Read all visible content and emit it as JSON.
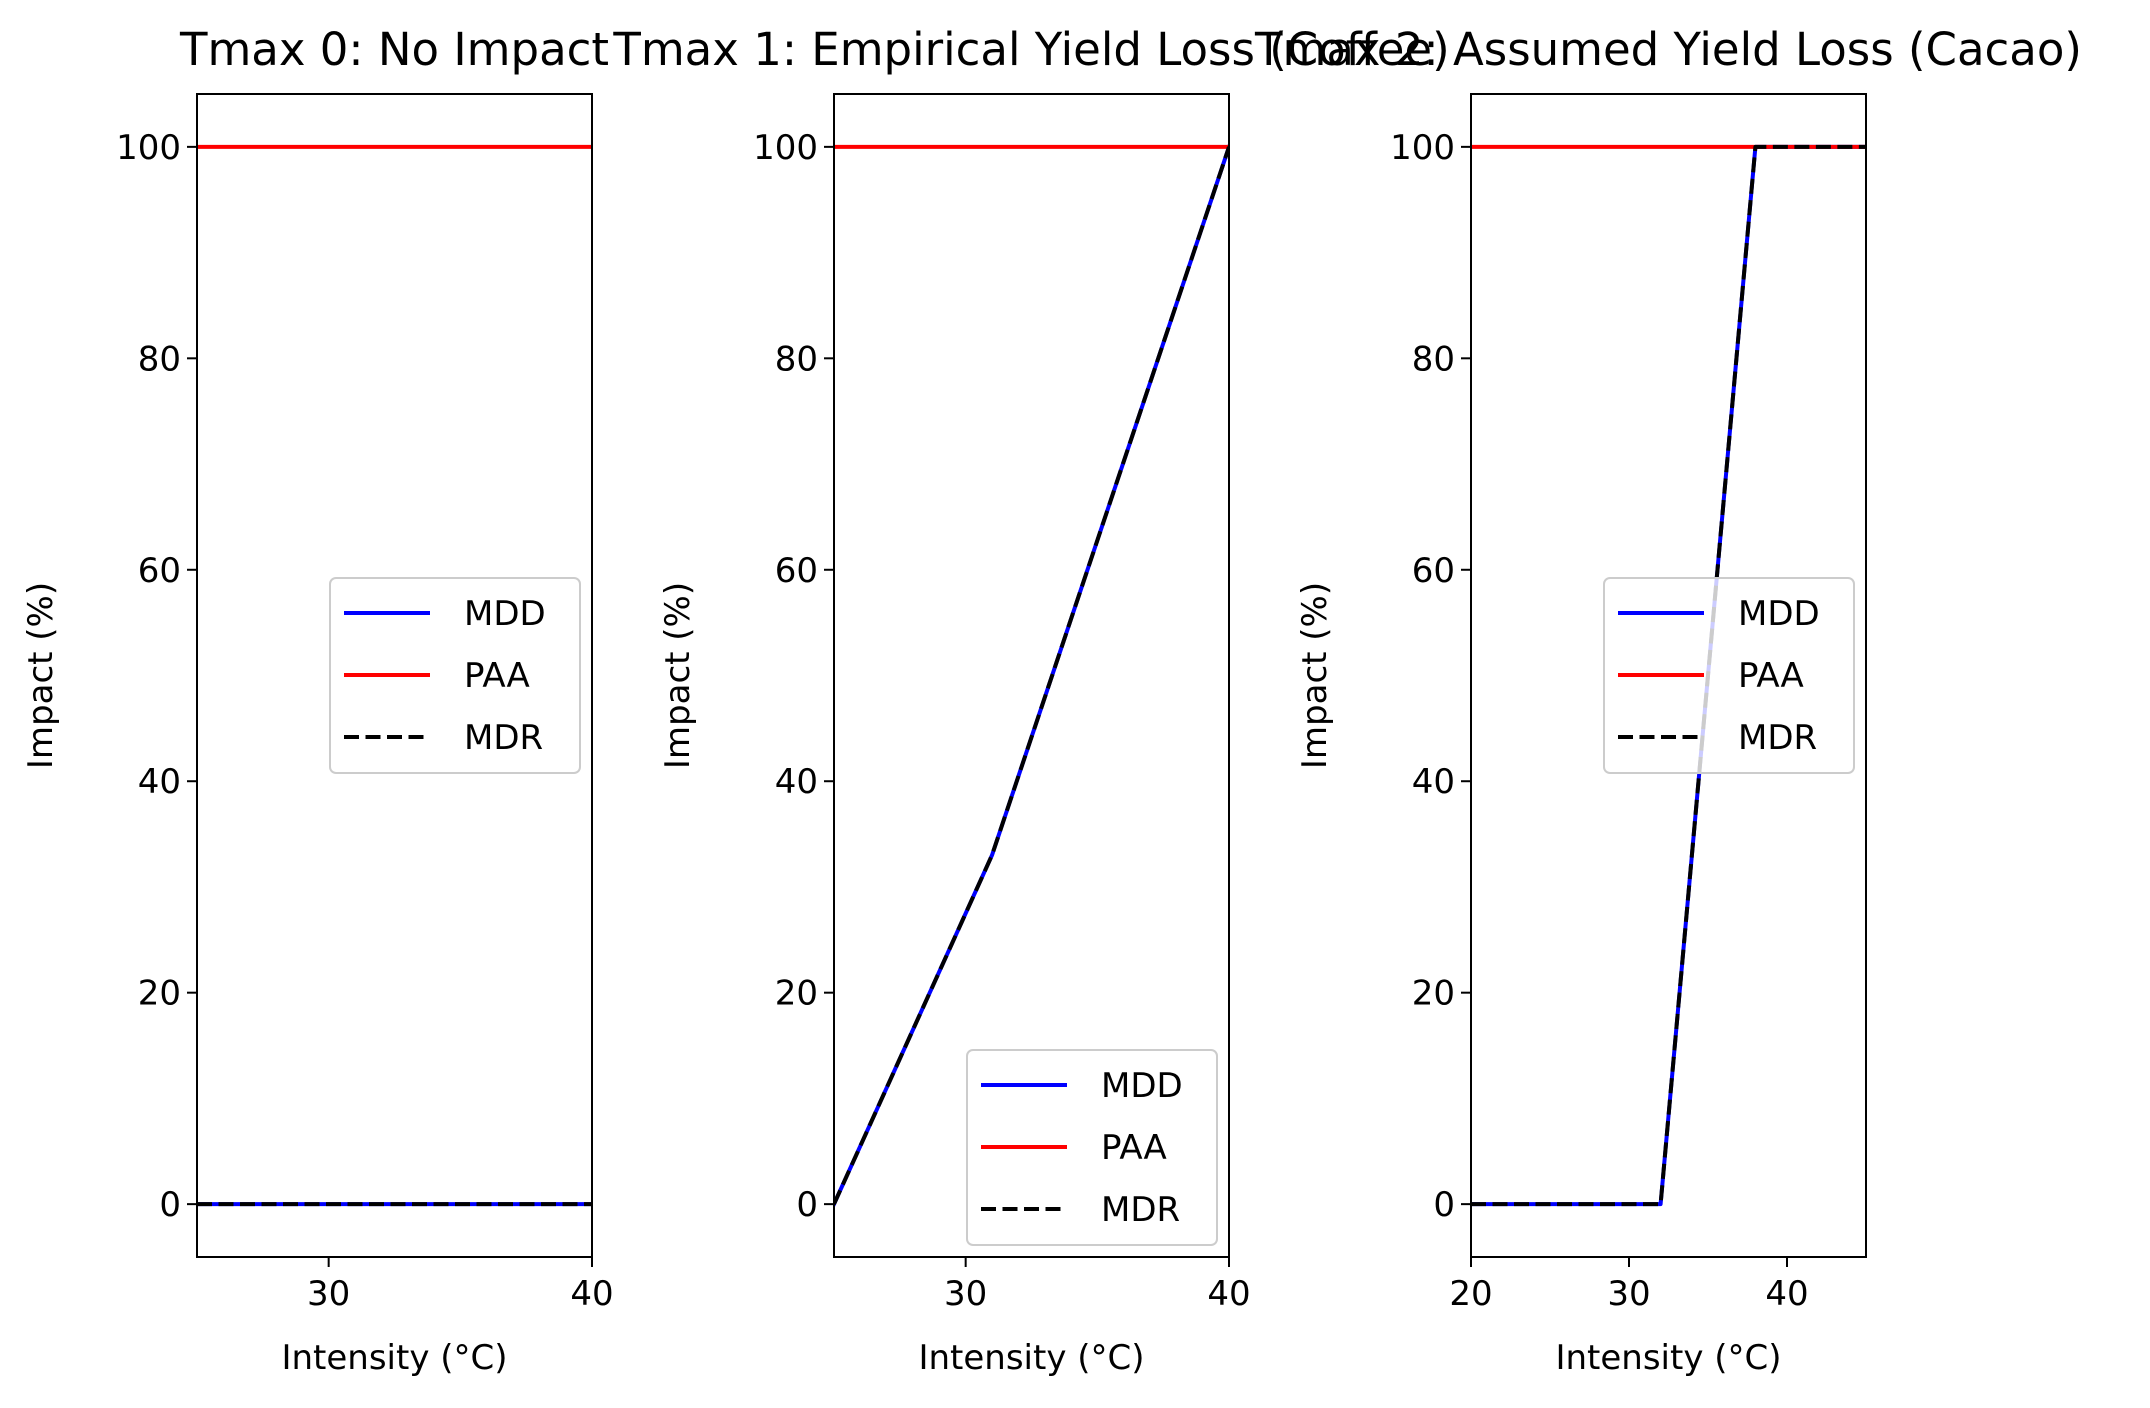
{
  "chart_data": [
    {
      "type": "line",
      "title": "Tmax 0: No Impact",
      "xlabel": "Intensity (°C)",
      "ylabel": "Impact (%)",
      "xlim": [
        25,
        40
      ],
      "ylim": [
        -5,
        105
      ],
      "xticks": [
        30,
        40
      ],
      "yticks": [
        0,
        20,
        40,
        60,
        80,
        100
      ],
      "legend_position": "center-right",
      "series": [
        {
          "name": "MDD",
          "color": "#0000ff",
          "style": "solid",
          "x": [
            25,
            40
          ],
          "y": [
            0,
            0
          ]
        },
        {
          "name": "PAA",
          "color": "#ff0000",
          "style": "solid",
          "x": [
            25,
            40
          ],
          "y": [
            100,
            100
          ]
        },
        {
          "name": "MDR",
          "color": "#000000",
          "style": "dashed",
          "x": [
            25,
            40
          ],
          "y": [
            0,
            0
          ]
        }
      ]
    },
    {
      "type": "line",
      "title": "Tmax 1: Empirical Yield Loss (Coffee)",
      "xlabel": "Intensity (°C)",
      "ylabel": "Impact (%)",
      "xlim": [
        25,
        40
      ],
      "ylim": [
        -5,
        105
      ],
      "xticks": [
        30,
        40
      ],
      "yticks": [
        0,
        20,
        40,
        60,
        80,
        100
      ],
      "legend_position": "lower-right",
      "series": [
        {
          "name": "MDD",
          "color": "#0000ff",
          "style": "solid",
          "x": [
            25,
            31,
            40
          ],
          "y": [
            0,
            33,
            100
          ]
        },
        {
          "name": "PAA",
          "color": "#ff0000",
          "style": "solid",
          "x": [
            25,
            40
          ],
          "y": [
            100,
            100
          ]
        },
        {
          "name": "MDR",
          "color": "#000000",
          "style": "dashed",
          "x": [
            25,
            31,
            40
          ],
          "y": [
            0,
            33,
            100
          ]
        }
      ]
    },
    {
      "type": "line",
      "title": "Tmax 2: Assumed Yield Loss (Cacao)",
      "xlabel": "Intensity (°C)",
      "ylabel": "Impact (%)",
      "xlim": [
        20,
        45
      ],
      "ylim": [
        -5,
        105
      ],
      "xticks": [
        20,
        30,
        40
      ],
      "yticks": [
        0,
        20,
        40,
        60,
        80,
        100
      ],
      "legend_position": "center-right",
      "series": [
        {
          "name": "MDD",
          "color": "#0000ff",
          "style": "solid",
          "x": [
            20,
            32,
            38,
            45
          ],
          "y": [
            0,
            0,
            100,
            100
          ]
        },
        {
          "name": "PAA",
          "color": "#ff0000",
          "style": "solid",
          "x": [
            20,
            45
          ],
          "y": [
            100,
            100
          ]
        },
        {
          "name": "MDR",
          "color": "#000000",
          "style": "dashed",
          "x": [
            20,
            32,
            38,
            45
          ],
          "y": [
            0,
            0,
            100,
            100
          ]
        }
      ]
    }
  ]
}
